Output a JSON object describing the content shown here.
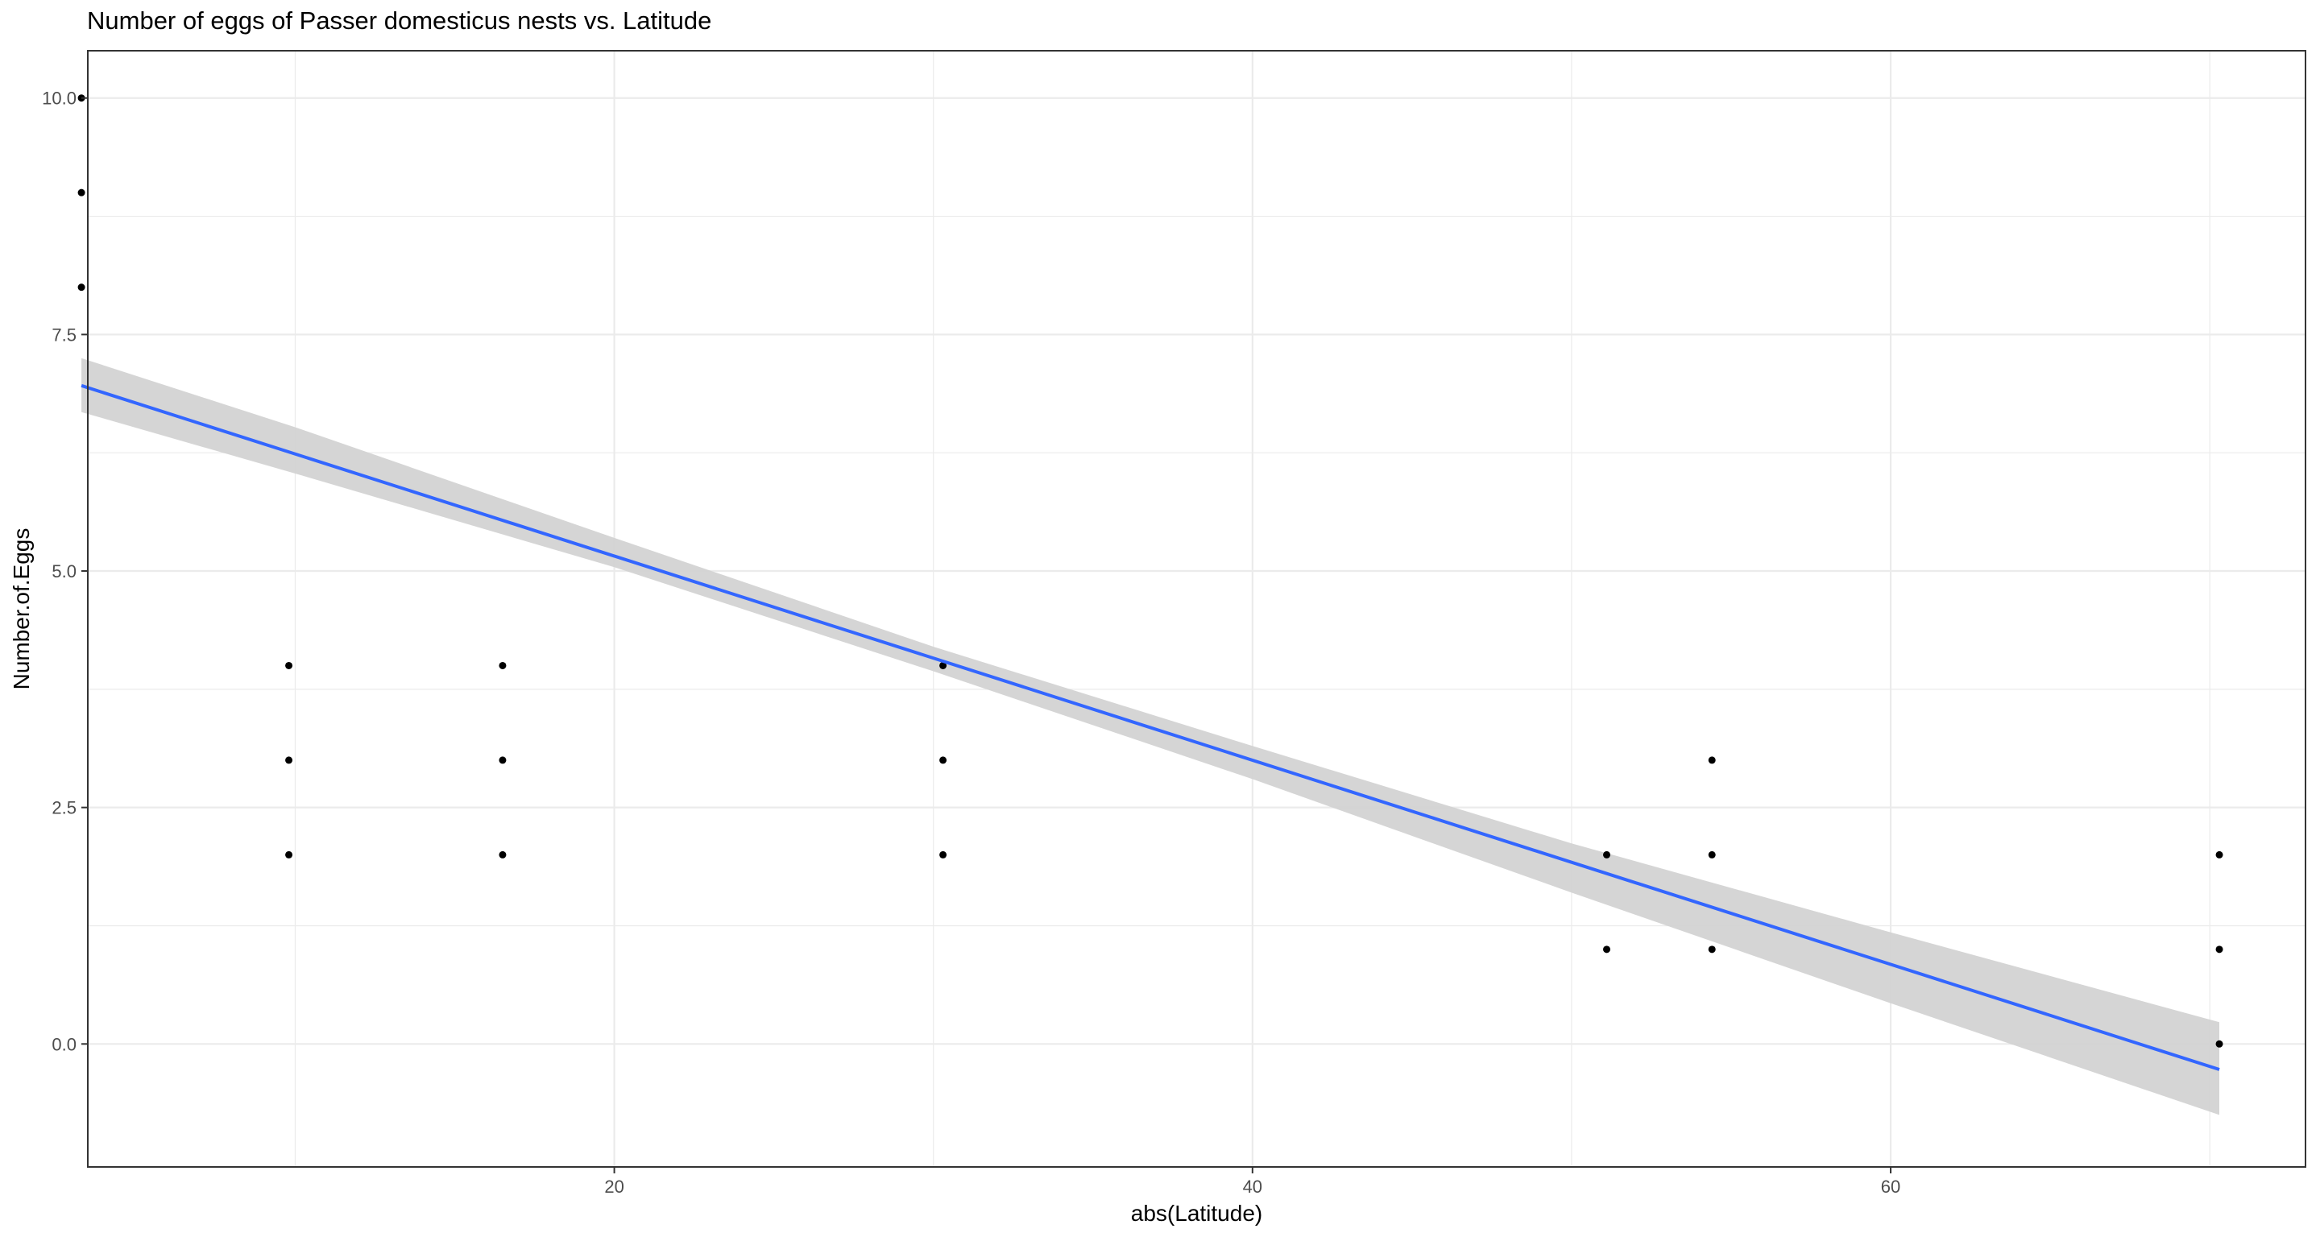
{
  "chart_data": {
    "type": "scatter",
    "title": "Number of eggs of Passer domesticus nests vs. Latitude",
    "xlabel": "abs(Latitude)",
    "ylabel": "Number.of.Eggs",
    "xlim": [
      3.5,
      73.0
    ],
    "ylim": [
      -1.3,
      10.5
    ],
    "x_ticks": [
      20,
      40,
      60
    ],
    "x_tick_labels": [
      "20",
      "40",
      "60"
    ],
    "x_minor_ticks": [
      10,
      30,
      50,
      70
    ],
    "y_ticks": [
      0,
      2.5,
      5,
      7.5,
      10
    ],
    "y_tick_labels": [
      "0.0",
      "2.5",
      "5.0",
      "7.5",
      "10.0"
    ],
    "y_minor_ticks": [
      1.25,
      3.75,
      6.25,
      8.75
    ],
    "grid": true,
    "points": [
      {
        "x": 3.3,
        "y": 10
      },
      {
        "x": 3.3,
        "y": 9
      },
      {
        "x": 3.3,
        "y": 8
      },
      {
        "x": 9.8,
        "y": 4
      },
      {
        "x": 9.8,
        "y": 3
      },
      {
        "x": 9.8,
        "y": 2
      },
      {
        "x": 16.5,
        "y": 4
      },
      {
        "x": 16.5,
        "y": 3
      },
      {
        "x": 16.5,
        "y": 2
      },
      {
        "x": 30.3,
        "y": 4
      },
      {
        "x": 30.3,
        "y": 3
      },
      {
        "x": 30.3,
        "y": 2
      },
      {
        "x": 51.1,
        "y": 2
      },
      {
        "x": 51.1,
        "y": 1
      },
      {
        "x": 54.4,
        "y": 3
      },
      {
        "x": 54.4,
        "y": 2
      },
      {
        "x": 54.4,
        "y": 1
      },
      {
        "x": 70.3,
        "y": 2
      },
      {
        "x": 70.3,
        "y": 1
      },
      {
        "x": 70.3,
        "y": 0
      }
    ],
    "fit_line": {
      "method": "linear",
      "x": [
        3.3,
        70.3
      ],
      "y": [
        6.96,
        -0.27
      ]
    },
    "confidence_band": {
      "x": [
        3.3,
        10,
        20,
        30,
        40,
        50,
        60,
        70.3
      ],
      "lower": [
        6.68,
        6.03,
        5.04,
        3.94,
        2.8,
        1.6,
        0.43,
        -0.75
      ],
      "upper": [
        7.25,
        6.52,
        5.35,
        4.2,
        3.15,
        2.12,
        1.18,
        0.23
      ]
    },
    "colors": {
      "points": "#000000",
      "fit_line": "#3366ff",
      "band": "#d3d3d3",
      "grid": "#ebebeb",
      "panel_border": "#333333"
    }
  }
}
